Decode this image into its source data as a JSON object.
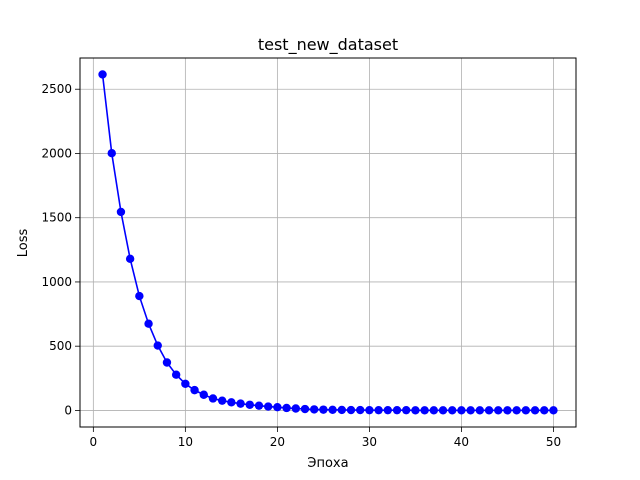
{
  "chart_data": {
    "type": "line",
    "title": "test_new_dataset",
    "xlabel": "Эпоха",
    "ylabel": "Loss",
    "xlim": [
      -1.45,
      52.45
    ],
    "ylim": [
      -129,
      2743
    ],
    "xticks": [
      0,
      10,
      20,
      30,
      40,
      50
    ],
    "yticks": [
      0,
      500,
      1000,
      1500,
      2000,
      2500
    ],
    "grid": true,
    "series": [
      {
        "color": "#0000ff",
        "marker": "circle",
        "x": [
          1,
          2,
          3,
          4,
          5,
          6,
          7,
          8,
          9,
          10,
          11,
          12,
          13,
          14,
          15,
          16,
          17,
          18,
          19,
          20,
          21,
          22,
          23,
          24,
          25,
          26,
          27,
          28,
          29,
          30,
          31,
          32,
          33,
          34,
          35,
          36,
          37,
          38,
          39,
          40,
          41,
          42,
          43,
          44,
          45,
          46,
          47,
          48,
          49,
          50
        ],
        "y": [
          2615,
          2002,
          1545,
          1180,
          890,
          675,
          505,
          373,
          278,
          207,
          158,
          122,
          93,
          76,
          63,
          53,
          44,
          37,
          30,
          25,
          19,
          15,
          11,
          8,
          6,
          5,
          4,
          3,
          3,
          2,
          2,
          2,
          2,
          2,
          1,
          1,
          1,
          1,
          1,
          1,
          1,
          1,
          1,
          1,
          1,
          1,
          1,
          1,
          1,
          1
        ]
      }
    ]
  }
}
